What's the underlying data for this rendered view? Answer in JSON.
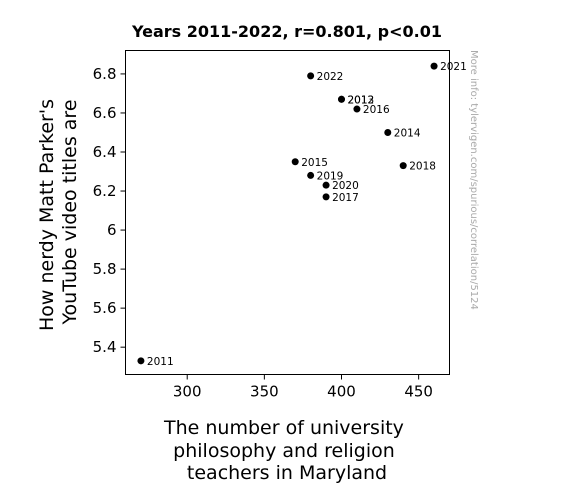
{
  "chart_data": {
    "type": "scatter",
    "title": "Years 2011-2022, r=0.801, p<0.01",
    "xlabel": [
      "The number of university",
      "philosophy and religion",
      "teachers in Maryland"
    ],
    "ylabel": [
      "How nerdy Matt Parker's",
      "YouTube video titles are"
    ],
    "xlim": [
      260,
      470
    ],
    "ylim": [
      5.26,
      6.92
    ],
    "xticks": [
      300,
      350,
      400,
      450
    ],
    "yticks": [
      5.4,
      5.6,
      5.8,
      6.0,
      6.2,
      6.4,
      6.6,
      6.8
    ],
    "ytick_labels": [
      "5.4",
      "5.6",
      "5.8",
      "6",
      "6.2",
      "6.4",
      "6.6",
      "6.8"
    ],
    "grid": false,
    "watermark": "More info: tylervigen.com/spurious/correlation/5124",
    "points": [
      {
        "label": "2011",
        "x": 270,
        "y": 5.33
      },
      {
        "label": "2012",
        "x": 400,
        "y": 6.67
      },
      {
        "label": "2013",
        "x": 400,
        "y": 6.67
      },
      {
        "label": "2014",
        "x": 430,
        "y": 6.5
      },
      {
        "label": "2015",
        "x": 370,
        "y": 6.35
      },
      {
        "label": "2016",
        "x": 410,
        "y": 6.62
      },
      {
        "label": "2017",
        "x": 390,
        "y": 6.17
      },
      {
        "label": "2018",
        "x": 440,
        "y": 6.33
      },
      {
        "label": "2019",
        "x": 380,
        "y": 6.28
      },
      {
        "label": "2020",
        "x": 390,
        "y": 6.23
      },
      {
        "label": "2021",
        "x": 460,
        "y": 6.84
      },
      {
        "label": "2022",
        "x": 380,
        "y": 6.79
      }
    ]
  }
}
